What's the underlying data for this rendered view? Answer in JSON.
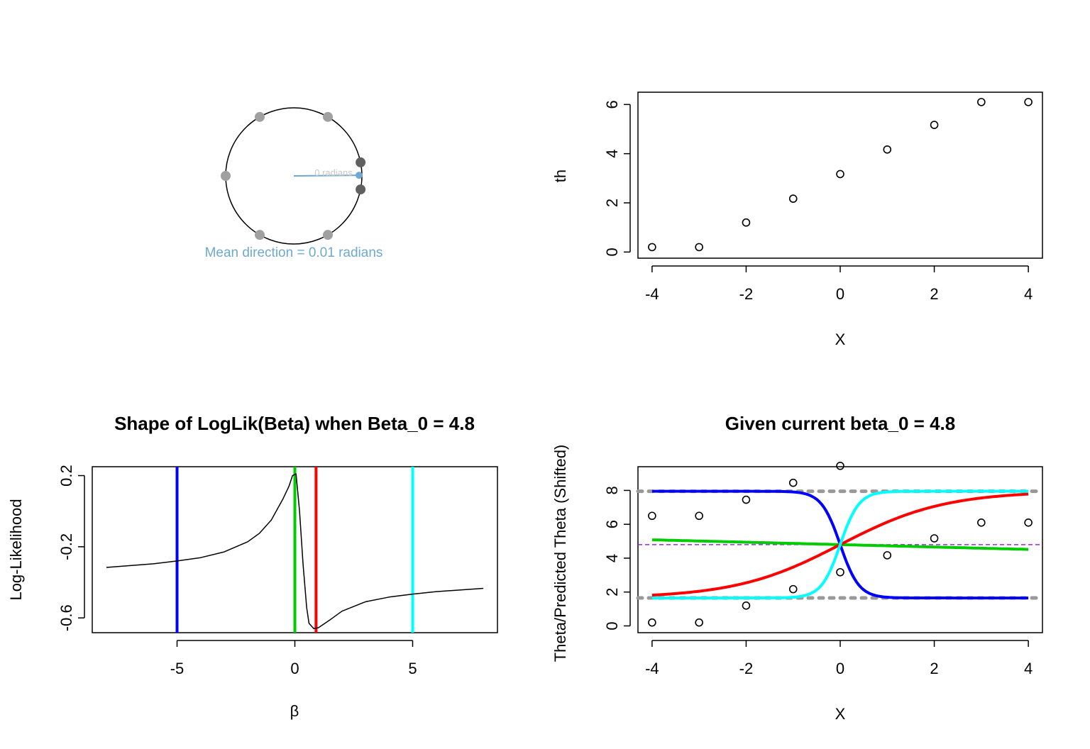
{
  "chart_data": [
    {
      "type": "scatter",
      "panel": "circular",
      "angles_light": [
        3.14159,
        2.0944,
        1.0472,
        -1.0472,
        -2.0944
      ],
      "angles_dark": [
        0.2,
        -0.2
      ],
      "point_colors": {
        "light": "#a0a0a0",
        "dark": "#606060",
        "arrow": "#6fa8d0"
      },
      "mean_direction": 0.01,
      "arrow_label": "0 radians",
      "annotation": "Mean direction = 0.01 radians"
    },
    {
      "type": "scatter",
      "panel": "th-vs-x",
      "xlabel": "X",
      "ylabel": "th",
      "xlim": [
        -4.3,
        4.3
      ],
      "ylim": [
        -0.25,
        6.5
      ],
      "xticks": [
        "-4",
        "-2",
        "0",
        "2",
        "4"
      ],
      "yticks": [
        "0",
        "2",
        "4",
        "6"
      ],
      "x": [
        -4,
        -3,
        -2,
        -1,
        0,
        1,
        2,
        3,
        4
      ],
      "y": [
        0.2,
        0.2,
        1.2,
        2.17,
        3.17,
        4.17,
        5.17,
        6.1,
        6.1
      ]
    },
    {
      "type": "line",
      "panel": "loglik",
      "title": "Shape of LogLik(Beta) when Beta_0 = 4.8",
      "xlabel": "β",
      "ylabel": "Log-Likelihood",
      "xlim": [
        -8.6,
        8.6
      ],
      "ylim": [
        -0.683,
        0.25
      ],
      "xticks": [
        "-5",
        "0",
        "5"
      ],
      "yticks": [
        "-0.6",
        "-0.2",
        "0.2"
      ],
      "curve": {
        "x": [
          -8,
          -6,
          -5,
          -4,
          -3,
          -2,
          -1.5,
          -1,
          -0.5,
          -0.25,
          -0.1,
          0.05,
          0.2,
          0.35,
          0.5,
          0.6,
          0.8,
          1,
          1.5,
          2,
          3,
          4,
          5,
          6,
          8
        ],
        "y": [
          -0.316,
          -0.296,
          -0.28,
          -0.261,
          -0.229,
          -0.172,
          -0.124,
          -0.05,
          0.07,
          0.14,
          0.2,
          0.21,
          0.0,
          -0.3,
          -0.54,
          -0.63,
          -0.66,
          -0.655,
          -0.61,
          -0.562,
          -0.509,
          -0.483,
          -0.466,
          -0.452,
          -0.434
        ]
      },
      "vlines": [
        {
          "x": -5,
          "color": "#0000ff"
        },
        {
          "x": 0,
          "color": "#00cc00"
        },
        {
          "x": 0.9,
          "color": "#ff0000"
        },
        {
          "x": 5,
          "color": "#00ffff"
        }
      ]
    },
    {
      "type": "line",
      "panel": "predicted",
      "title": "Given current beta_0 = 4.8",
      "xlabel": "X",
      "ylabel": "Theta/Predicted Theta (Shifted)",
      "xlim": [
        -4.3,
        4.3
      ],
      "ylim": [
        -0.4,
        9.4
      ],
      "xticks": [
        "-4",
        "-2",
        "0",
        "2",
        "4"
      ],
      "yticks": [
        "0",
        "2",
        "4",
        "6",
        "8"
      ],
      "points": {
        "x": [
          -4,
          -3,
          -2,
          -1,
          0,
          1,
          2,
          3,
          4,
          -4,
          -3,
          -2,
          -1,
          0
        ],
        "y": [
          0.2,
          0.2,
          1.2,
          2.17,
          3.17,
          4.17,
          5.17,
          6.1,
          6.1,
          6.5,
          6.5,
          7.45,
          8.45,
          9.45
        ]
      },
      "hlines": [
        {
          "y": 7.95,
          "color": "#999999",
          "style": "dotted-thick"
        },
        {
          "y": 1.65,
          "color": "#999999",
          "style": "dotted-thick"
        },
        {
          "y": 4.8,
          "color": "#a020f0",
          "style": "dashed"
        }
      ],
      "series": [
        {
          "color": "#0000ff",
          "beta": -5
        },
        {
          "color": "#00cc00",
          "beta": -0.045
        },
        {
          "color": "#ff0000",
          "beta": 0.9
        },
        {
          "color": "#00ffff",
          "beta": 5
        }
      ]
    }
  ]
}
